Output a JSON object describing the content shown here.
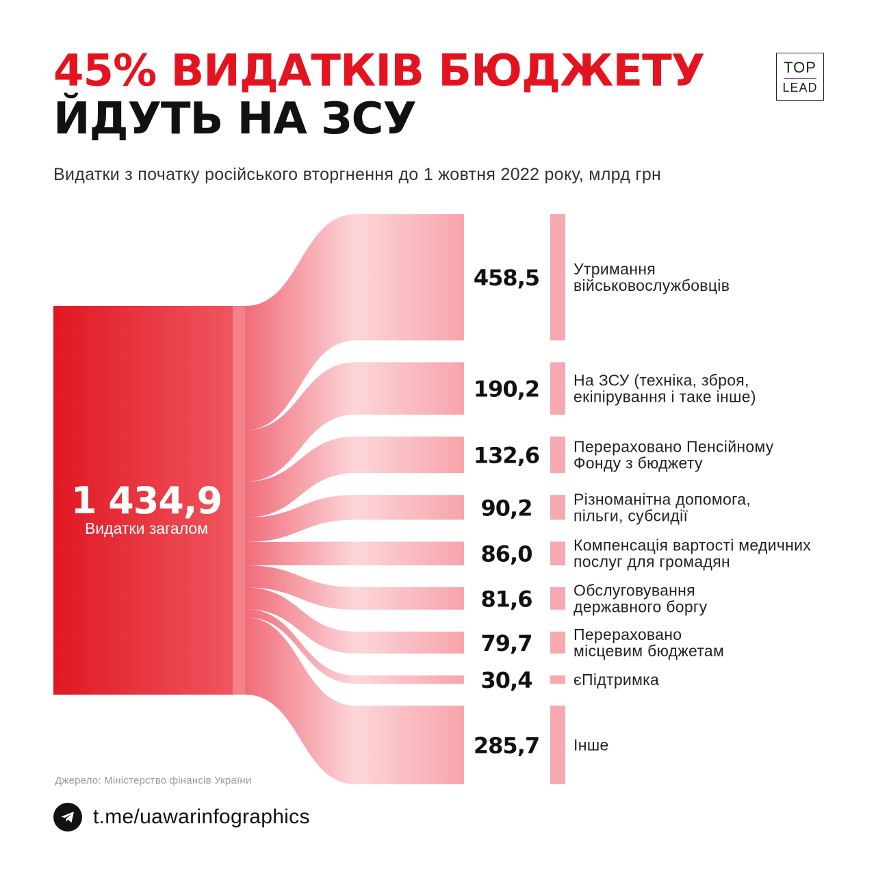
{
  "header": {
    "title_line1": "45% ВИДАТКІВ БЮДЖЕТУ",
    "title_line2": "ЙДУТЬ НА ЗСУ",
    "subtitle": "Видатки з початку російського вторгнення до 1 жовтня 2022 року, млрд грн"
  },
  "logo": {
    "top": "TOP",
    "bottom": "LEAD"
  },
  "colors": {
    "accent": "#e3141f",
    "source_dark": "#e01822",
    "source_light": "#f05a64",
    "flow_dark": "#f06c78",
    "flow_light": "#fcd6da",
    "target": "#f7a3aa",
    "label_bar": "#f7a9b0"
  },
  "chart_data": {
    "type": "sankey",
    "title": "45% ВИДАТКІВ БЮДЖЕТУ ЙДУТЬ НА ЗСУ",
    "unit": "млрд грн",
    "total": {
      "value": 1434.9,
      "value_label": "1 434,9",
      "label": "Видатки загалом"
    },
    "items": [
      {
        "value": 458.5,
        "value_label": "458,5",
        "label_lines": [
          "Утримання",
          "військовослужбовців"
        ]
      },
      {
        "value": 190.2,
        "value_label": "190,2",
        "label_lines": [
          "На ЗСУ (техніка, зброя,",
          "екіпірування і таке інше)"
        ]
      },
      {
        "value": 132.6,
        "value_label": "132,6",
        "label_lines": [
          "Перераховано Пенсійному",
          "Фонду з бюджету"
        ]
      },
      {
        "value": 90.2,
        "value_label": "90,2",
        "label_lines": [
          "Різноманітна допомога,",
          "пільги, субсидії"
        ]
      },
      {
        "value": 86.0,
        "value_label": "86,0",
        "label_lines": [
          "Компенсація вартості медичних",
          "послуг для громадян"
        ]
      },
      {
        "value": 81.6,
        "value_label": "81,6",
        "label_lines": [
          "Обслуговування",
          "державного боргу"
        ]
      },
      {
        "value": 79.7,
        "value_label": "79,7",
        "label_lines": [
          "Перераховано",
          "місцевим бюджетам"
        ]
      },
      {
        "value": 30.4,
        "value_label": "30,4",
        "label_lines": [
          "єПідтримка"
        ]
      },
      {
        "value": 285.7,
        "value_label": "285,7",
        "label_lines": [
          "Інше"
        ]
      }
    ]
  },
  "footer": {
    "source": "Джерело: Міністерство фінансів України",
    "link": "t.me/uawarinfographics",
    "icon": "telegram-icon"
  }
}
